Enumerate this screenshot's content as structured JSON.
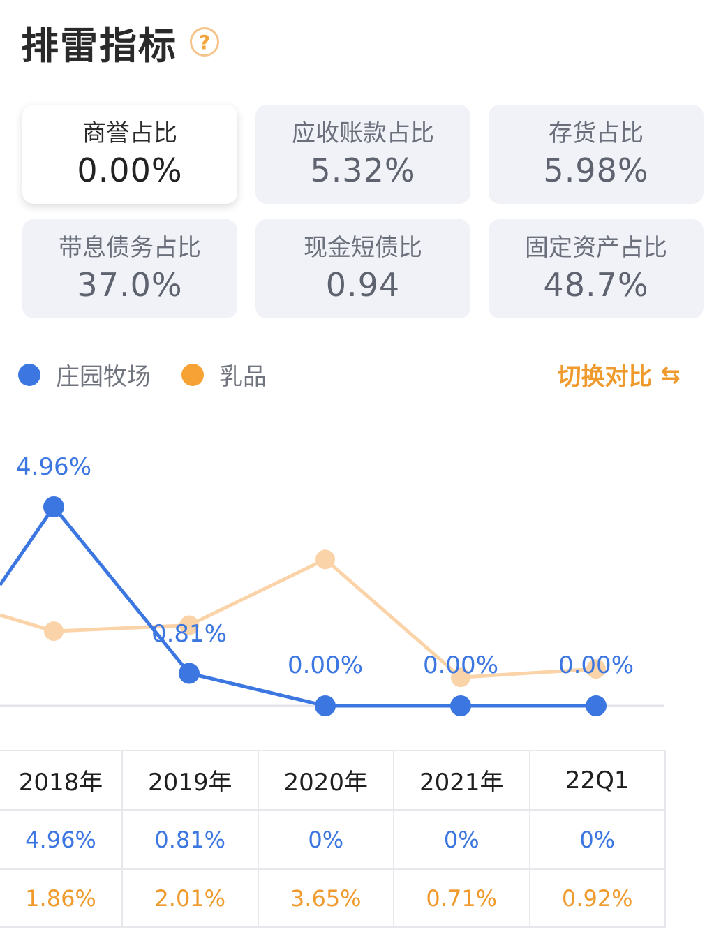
{
  "header": {
    "title": "排雷指标",
    "help_icon": "question-circle-icon"
  },
  "cards": [
    {
      "label": "商誉占比",
      "value": "0.00%",
      "active": true
    },
    {
      "label": "应收账款占比",
      "value": "5.32%"
    },
    {
      "label": "存货占比",
      "value": "5.98%"
    },
    {
      "label": "带息债务占比",
      "value": "37.0%"
    },
    {
      "label": "现金短债比",
      "value": "0.94"
    },
    {
      "label": "固定资产占比",
      "value": "48.7%"
    }
  ],
  "legend": [
    {
      "label": "庄园牧场",
      "color": "#3b76e1"
    },
    {
      "label": "乳品",
      "color": "#f7a234"
    }
  ],
  "switch_label": "切换对比",
  "switch_icon": "compare-toggle-icon",
  "chart_data": {
    "type": "line",
    "categories": [
      "2018年",
      "2019年",
      "2020年",
      "2021年",
      "22Q1"
    ],
    "series": [
      {
        "name": "庄园牧场",
        "color": "#3b76e1",
        "values": [
          4.96,
          0.81,
          0.0,
          0.0,
          0.0
        ],
        "labels": [
          "4.96%",
          "0.81%",
          "0.00%",
          "0.00%",
          "0.00%"
        ]
      },
      {
        "name": "乳品",
        "color": "#fbd3a8",
        "values": [
          1.86,
          2.01,
          3.65,
          0.71,
          0.92
        ]
      }
    ]
  },
  "table": {
    "headers": [
      "2018年",
      "2019年",
      "2020年",
      "2021年",
      "22Q1"
    ],
    "rows": [
      {
        "series": "庄园牧场",
        "cells": [
          "4.96%",
          "0.81%",
          "0%",
          "0%",
          "0%"
        ]
      },
      {
        "series": "乳品",
        "cells": [
          "1.86%",
          "2.01%",
          "3.65%",
          "0.71%",
          "0.92%"
        ]
      }
    ]
  }
}
